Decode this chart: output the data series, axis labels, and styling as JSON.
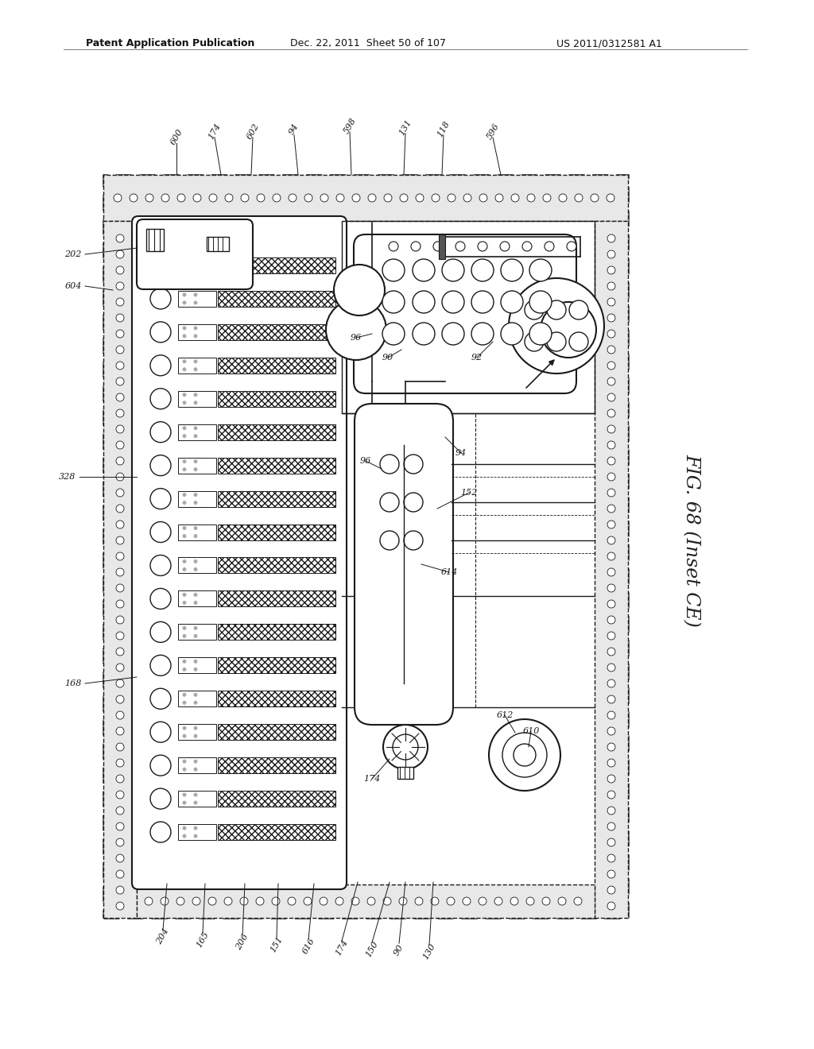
{
  "header_left": "Patent Application Publication",
  "header_mid": "Dec. 22, 2011  Sheet 50 of 107",
  "header_right": "US 2011/0312581 A1",
  "fig_label": "FIG. 68 (Inset CE)",
  "bg_color": "#ffffff",
  "line_color": "#1a1a1a",
  "label_color": "#1a1a1a"
}
